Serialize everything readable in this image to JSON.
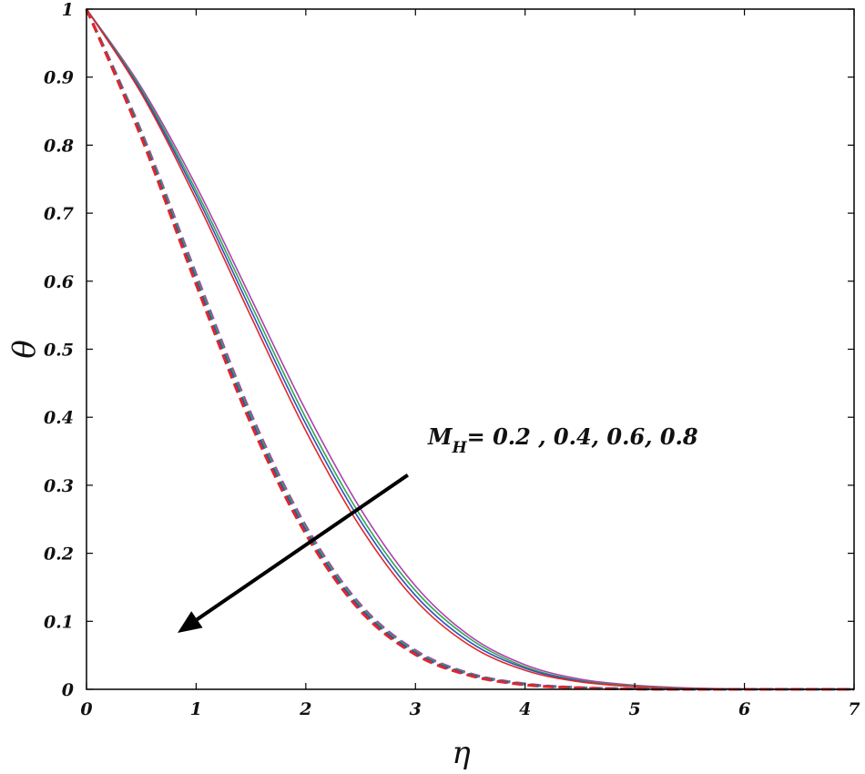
{
  "chart_data": {
    "type": "line",
    "xlabel": "η",
    "ylabel": "θ",
    "xlim": [
      0,
      7
    ],
    "ylim": [
      0,
      1
    ],
    "xticks": [
      0,
      1,
      2,
      3,
      4,
      5,
      6,
      7
    ],
    "yticks": [
      0,
      0.1,
      0.2,
      0.3,
      0.4,
      0.5,
      0.6,
      0.7,
      0.8,
      0.9,
      1
    ],
    "ytick_labels": [
      "0",
      "0.1",
      "0.2",
      "0.3",
      "0.4",
      "0.5",
      "0.6",
      "0.7",
      "0.8",
      "0.9",
      "1"
    ],
    "grid": false,
    "x": [
      0,
      0.5,
      1,
      1.5,
      2,
      2.5,
      3,
      3.5,
      4,
      4.5,
      5,
      5.5,
      6,
      6.5,
      7
    ],
    "series": [
      {
        "color": "#b03fb0",
        "style": "solid",
        "values": [
          1.0,
          0.885,
          0.74,
          0.575,
          0.41,
          0.265,
          0.152,
          0.078,
          0.036,
          0.015,
          0.006,
          0.002,
          0.0005,
          0.0001,
          0
        ]
      },
      {
        "color": "#2fa84a",
        "style": "solid",
        "values": [
          1.0,
          0.882,
          0.733,
          0.566,
          0.399,
          0.255,
          0.145,
          0.074,
          0.033,
          0.013,
          0.005,
          0.0015,
          0.0004,
          0.0001,
          0
        ]
      },
      {
        "color": "#3050c0",
        "style": "solid",
        "values": [
          1.0,
          0.879,
          0.727,
          0.557,
          0.39,
          0.247,
          0.138,
          0.069,
          0.031,
          0.012,
          0.004,
          0.0012,
          0.0003,
          0.0001,
          0
        ]
      },
      {
        "color": "#e02828",
        "style": "solid",
        "values": [
          1.0,
          0.876,
          0.72,
          0.548,
          0.38,
          0.238,
          0.131,
          0.064,
          0.028,
          0.011,
          0.004,
          0.001,
          0.0003,
          0.0001,
          0
        ]
      },
      {
        "color": "#b03fb0",
        "style": "dashed",
        "values": [
          1.0,
          0.82,
          0.61,
          0.405,
          0.24,
          0.124,
          0.057,
          0.023,
          0.008,
          0.0025,
          0.0007,
          0.0002,
          0,
          0,
          0
        ]
      },
      {
        "color": "#2fa84a",
        "style": "dashed",
        "values": [
          1.0,
          0.817,
          0.605,
          0.4,
          0.236,
          0.121,
          0.055,
          0.022,
          0.0075,
          0.0023,
          0.0006,
          0.0001,
          0,
          0,
          0
        ]
      },
      {
        "color": "#3050c0",
        "style": "dashed",
        "values": [
          1.0,
          0.814,
          0.6,
          0.395,
          0.232,
          0.118,
          0.053,
          0.021,
          0.007,
          0.0021,
          0.0006,
          0.0001,
          0,
          0,
          0
        ]
      },
      {
        "color": "#e02828",
        "style": "dashed",
        "values": [
          1.0,
          0.811,
          0.595,
          0.39,
          0.228,
          0.115,
          0.051,
          0.02,
          0.0065,
          0.002,
          0.0005,
          0.0001,
          0,
          0,
          0
        ]
      }
    ],
    "annotation": {
      "text_base": "M",
      "text_sub": "H",
      "text_rest": "= 0.2 , 0.4, 0.6, 0.8",
      "arrow_from": [
        2.93,
        0.315
      ],
      "arrow_to": [
        0.83,
        0.083
      ],
      "arrow_color": "#000000"
    }
  }
}
